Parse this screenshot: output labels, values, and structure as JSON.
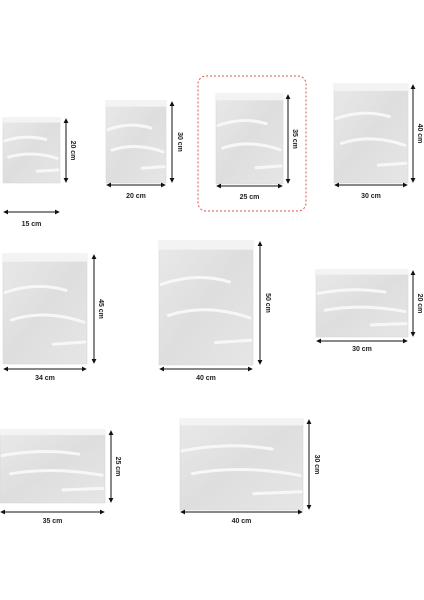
{
  "sizes": [
    {
      "width": "15 cm",
      "height": "20 cm"
    },
    {
      "width": "20 cm",
      "height": "30 cm"
    },
    {
      "width": "25 cm",
      "height": "35 cm"
    },
    {
      "width": "30 cm",
      "height": "40 cm"
    },
    {
      "width": "34 cm",
      "height": "45 cm"
    },
    {
      "width": "40 cm",
      "height": "50 cm"
    },
    {
      "width": "30 cm",
      "height": "20 cm"
    },
    {
      "width": "35 cm",
      "height": "25 cm"
    },
    {
      "width": "40 cm",
      "height": "30 cm"
    }
  ]
}
